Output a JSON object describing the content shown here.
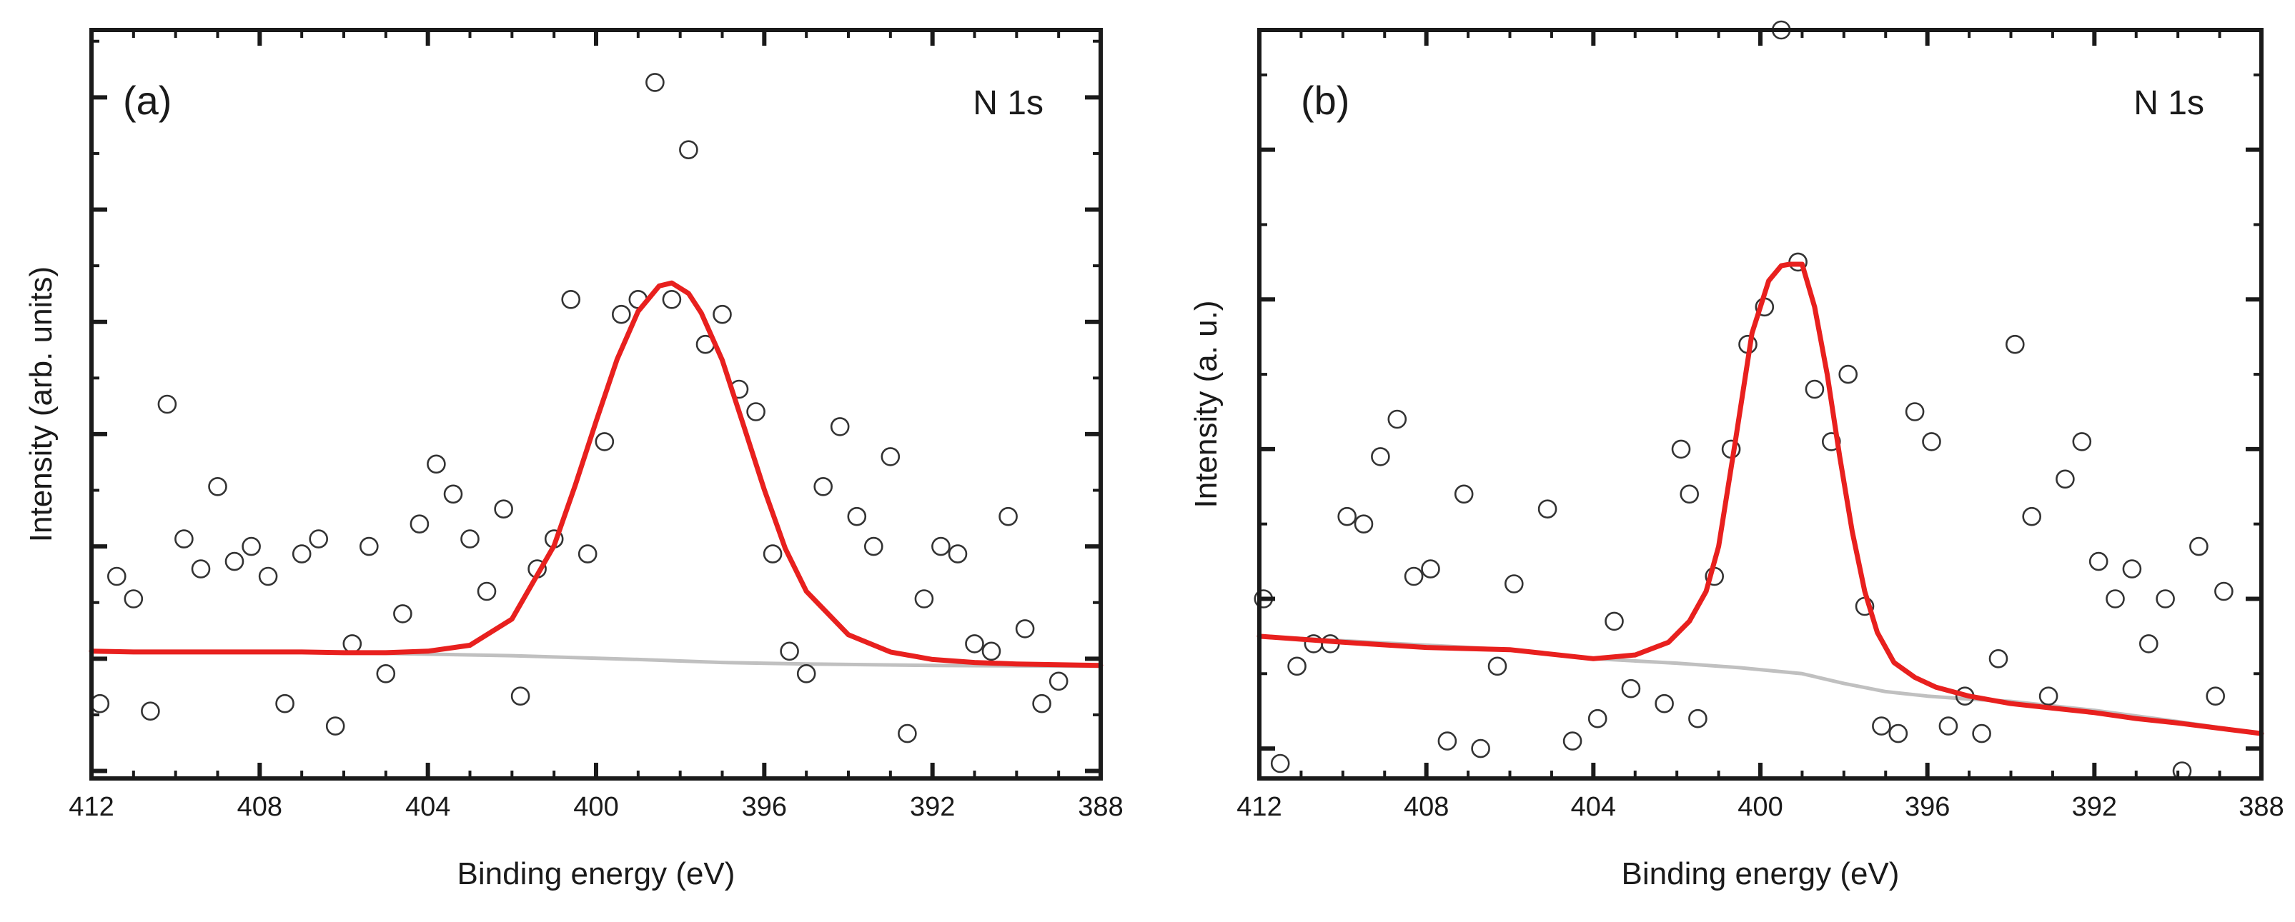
{
  "figure": {
    "panels": [
      {
        "title": "(a)"
      },
      {
        "title": "(b)"
      }
    ]
  },
  "chart_data": [
    {
      "type": "scatter",
      "title": "(a)",
      "annotation": "N 1s",
      "xlabel": "Binding energy (eV)",
      "ylabel": "Intensity (arb. units)",
      "xlim": [
        412,
        388
      ],
      "ylim": [
        0,
        100
      ],
      "x_ticks": [
        412,
        408,
        404,
        400,
        396,
        392,
        388
      ],
      "x_tick_labels": [
        "412",
        "408",
        "404",
        "400",
        "396",
        "392",
        "388"
      ],
      "y_ticks": [
        1,
        16,
        31,
        46,
        61,
        76,
        91
      ],
      "y_tick_labels": [],
      "legend": [],
      "grid": false,
      "series": [
        {
          "name": "Experimental data",
          "kind": "markers",
          "marker": "open-circle",
          "color": "#333333",
          "x": [
            411.8,
            411.4,
            411.0,
            410.6,
            410.2,
            409.8,
            409.4,
            409.0,
            408.6,
            408.2,
            407.8,
            407.4,
            407.0,
            406.6,
            406.2,
            405.8,
            405.4,
            405.0,
            404.6,
            404.2,
            403.8,
            403.4,
            403.0,
            402.6,
            402.2,
            401.8,
            401.4,
            401.0,
            400.6,
            400.2,
            399.8,
            399.4,
            399.0,
            398.6,
            398.2,
            397.8,
            397.4,
            397.0,
            396.6,
            396.2,
            395.8,
            395.4,
            395.0,
            394.6,
            394.2,
            393.8,
            393.4,
            393.0,
            392.6,
            392.2,
            391.8,
            391.4,
            391.0,
            390.6,
            390.2,
            389.8,
            389.4,
            389.0
          ],
          "y": [
            10,
            27,
            24,
            9,
            50,
            32,
            28,
            39,
            29,
            31,
            27,
            10,
            30,
            32,
            7,
            18,
            31,
            14,
            22,
            34,
            42,
            38,
            32,
            25,
            36,
            11,
            28,
            32,
            64,
            30,
            45,
            62,
            64,
            93,
            64,
            84,
            58,
            62,
            52,
            49,
            30,
            17,
            14,
            39,
            47,
            35,
            31,
            43,
            6,
            24,
            31,
            30,
            18,
            17,
            35,
            20,
            10,
            13
          ]
        },
        {
          "name": "Fitted peak",
          "kind": "line",
          "color": "#e8201e",
          "x": [
            412,
            411,
            410,
            409,
            408,
            407,
            406,
            405,
            404,
            403,
            402,
            401,
            400.5,
            400,
            399.5,
            399,
            398.5,
            398.2,
            397.8,
            397.5,
            397,
            396.5,
            396,
            395.5,
            395,
            394,
            393,
            392,
            391,
            390,
            389,
            388
          ],
          "y": [
            17.0,
            16.9,
            16.9,
            16.9,
            16.9,
            16.9,
            16.8,
            16.8,
            17.0,
            17.8,
            21.3,
            31.1,
            39.1,
            47.7,
            56.0,
            62.4,
            65.8,
            66.2,
            64.8,
            62.2,
            55.9,
            47.3,
            38.6,
            30.7,
            25.0,
            19.2,
            16.9,
            15.9,
            15.5,
            15.3,
            15.2,
            15.1
          ]
        },
        {
          "name": "Background",
          "kind": "line",
          "color": "#c0c0c0",
          "x": [
            412,
            406,
            402,
            399,
            397,
            395,
            392,
            388
          ],
          "y": [
            17.0,
            16.8,
            16.4,
            15.9,
            15.5,
            15.3,
            15.1,
            15.0
          ]
        }
      ]
    },
    {
      "type": "scatter",
      "title": "(b)",
      "annotation": "N 1s",
      "xlabel": "Binding energy (eV)",
      "ylabel": "Intensity (a. u.)",
      "xlim": [
        412,
        388
      ],
      "ylim": [
        0,
        100
      ],
      "x_ticks": [
        412,
        408,
        404,
        400,
        396,
        392,
        388
      ],
      "x_tick_labels": [
        "412",
        "408",
        "404",
        "400",
        "396",
        "392",
        "388"
      ],
      "y_ticks": [
        4,
        24,
        44,
        64,
        84
      ],
      "y_tick_labels": [],
      "legend": [],
      "grid": false,
      "series": [
        {
          "name": "Experimental data",
          "kind": "markers",
          "marker": "open-circle",
          "color": "#333333",
          "x": [
            411.9,
            411.5,
            411.1,
            410.7,
            410.3,
            409.9,
            409.5,
            409.1,
            408.7,
            408.3,
            407.9,
            407.5,
            407.1,
            406.7,
            406.3,
            405.9,
            405.1,
            404.5,
            403.9,
            403.5,
            403.1,
            402.3,
            401.9,
            401.7,
            401.5,
            401.1,
            400.7,
            400.3,
            399.9,
            399.5,
            399.1,
            398.7,
            398.3,
            397.9,
            397.5,
            397.1,
            396.7,
            396.3,
            395.9,
            395.5,
            395.1,
            394.7,
            394.3,
            393.9,
            393.5,
            393.1,
            392.7,
            392.3,
            391.9,
            391.5,
            391.1,
            390.7,
            390.3,
            389.9,
            389.5,
            389.1,
            388.9
          ],
          "y": [
            24,
            2,
            15,
            18,
            18,
            35,
            34,
            43,
            48,
            27,
            28,
            5,
            38,
            4,
            15,
            26,
            36,
            5,
            8,
            21,
            12,
            10,
            44,
            38,
            8,
            27,
            44,
            58,
            63,
            100,
            69,
            52,
            45,
            54,
            23,
            7,
            6,
            49,
            45,
            7,
            11,
            6,
            16,
            58,
            35,
            11,
            40,
            45,
            29,
            24,
            28,
            18,
            24,
            1,
            31,
            11,
            25
          ]
        },
        {
          "name": "Fitted peak",
          "kind": "line",
          "color": "#e8201e",
          "x": [
            412,
            410,
            408,
            406,
            404,
            403,
            402.2,
            401.7,
            401.3,
            401.0,
            400.6,
            400.2,
            399.8,
            399.5,
            399.3,
            399.0,
            398.7,
            398.4,
            398.1,
            397.8,
            397.5,
            397.2,
            396.8,
            396.3,
            395.8,
            395.0,
            394.0,
            393.0,
            392.0,
            391.0,
            390.0,
            389.0,
            388.0
          ],
          "y": [
            19.0,
            18.2,
            17.5,
            17.2,
            16.0,
            16.5,
            18.2,
            21.0,
            25.0,
            31.0,
            45.0,
            59.5,
            66.5,
            68.5,
            68.7,
            68.7,
            63.0,
            54.0,
            43.0,
            33.0,
            25.0,
            19.5,
            15.5,
            13.5,
            12.2,
            11.0,
            10.0,
            9.4,
            8.8,
            8.0,
            7.4,
            6.7,
            6.0
          ]
        },
        {
          "name": "Background",
          "kind": "line",
          "color": "#c0c0c0",
          "x": [
            412,
            406,
            404,
            402,
            400.5,
            399,
            398,
            397,
            396,
            395,
            394,
            392,
            390,
            388
          ],
          "y": [
            19.0,
            17.2,
            16.0,
            15.4,
            14.8,
            14.0,
            12.7,
            11.6,
            11.0,
            10.6,
            10.3,
            9.1,
            7.6,
            6.0
          ]
        }
      ]
    }
  ]
}
